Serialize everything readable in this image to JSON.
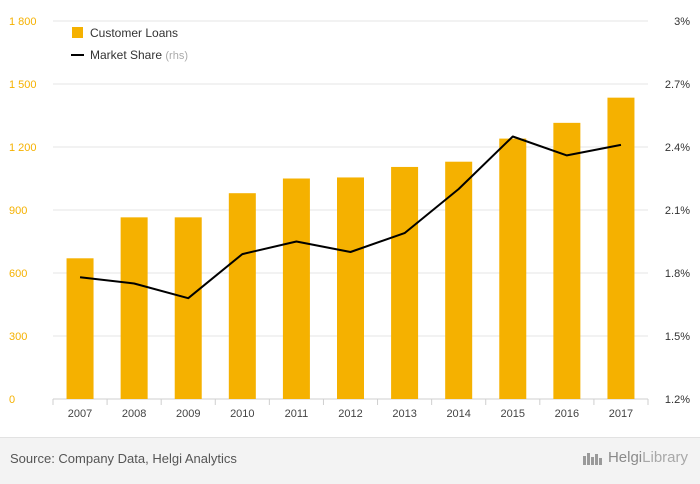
{
  "chart_data": {
    "type": "bar+line",
    "categories": [
      "2007",
      "2008",
      "2009",
      "2010",
      "2011",
      "2012",
      "2013",
      "2014",
      "2015",
      "2016",
      "2017"
    ],
    "series": [
      {
        "name": "Customer Loans",
        "type": "bar",
        "axis": "left",
        "color": "#f5b100",
        "values": [
          670,
          865,
          865,
          980,
          1050,
          1055,
          1105,
          1130,
          1240,
          1315,
          1435
        ]
      },
      {
        "name": "Market Share",
        "name_suffix": "(rhs)",
        "type": "line",
        "axis": "right",
        "color": "#000000",
        "values": [
          1.78,
          1.75,
          1.68,
          1.89,
          1.95,
          1.9,
          1.99,
          2.2,
          2.45,
          2.36,
          2.41
        ]
      }
    ],
    "y_left": {
      "lim": [
        0,
        1800
      ],
      "ticks": [
        0,
        300,
        600,
        900,
        1200,
        1500,
        1800
      ],
      "tick_labels": [
        "0",
        "300",
        "600",
        "900",
        "1 200",
        "1 500",
        "1 800"
      ],
      "color": "#f5b100"
    },
    "y_right": {
      "lim": [
        1.2,
        3.0
      ],
      "ticks": [
        1.2,
        1.5,
        1.8,
        2.1,
        2.4,
        2.7,
        3.0
      ],
      "tick_labels": [
        "1.2%",
        "1.5%",
        "1.8%",
        "2.1%",
        "2.4%",
        "2.7%",
        "3%"
      ]
    },
    "grid": true,
    "legend": "top-left"
  },
  "footer": {
    "source": "Source: Company Data, Helgi Analytics",
    "brand_main": "Helgi",
    "brand_sub": "Library"
  },
  "colors": {
    "bar": "#f5b100",
    "line": "#000000",
    "grid": "#e5e5e5",
    "axis_text": "#444444",
    "rhs_note": "#aaaaaa"
  }
}
